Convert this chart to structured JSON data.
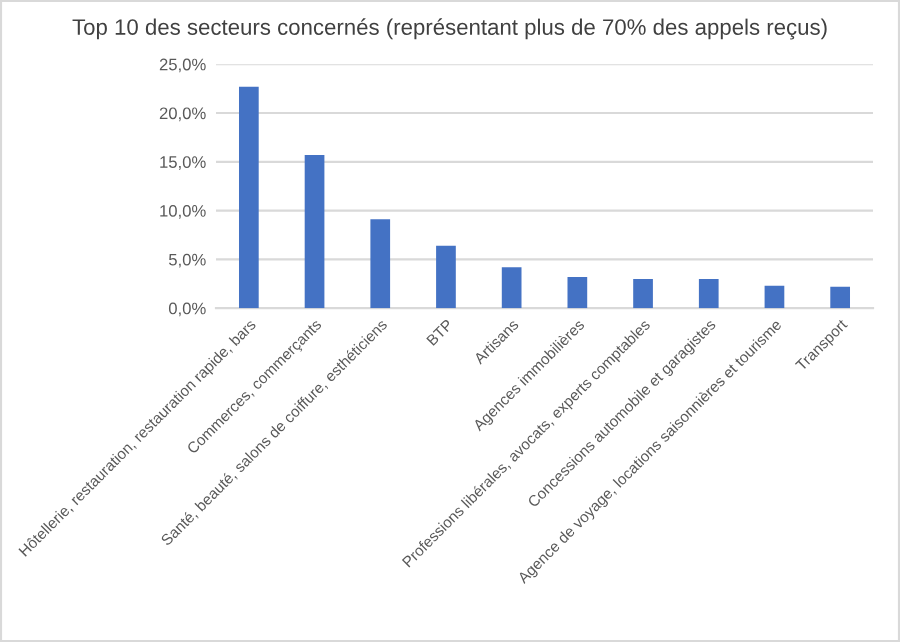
{
  "chart_data": {
    "type": "bar",
    "title": "Top 10 des secteurs concernés (représentant plus de 70% des appels reçus)",
    "categories": [
      "Hôtellerie, restauration, restauration rapide, bars",
      "Commerces, commerçants",
      "Santé, beauté, salons de coiffure, esthéticiens",
      "BTP",
      "Artisans",
      "Agences immobilières",
      "Professions libérales, avocats, experts comptables",
      "Concessions automobile et garagistes",
      "Agence de voyage, locations saisonnières et tourisme",
      "Transport"
    ],
    "values": [
      22.7,
      15.7,
      9.1,
      6.4,
      4.2,
      3.2,
      3.0,
      3.0,
      2.3,
      2.2
    ],
    "color": "#4472c4",
    "ylim": [
      0,
      25
    ],
    "yticks": [
      {
        "value": 0,
        "label": "0,0%"
      },
      {
        "value": 5,
        "label": "5,0%"
      },
      {
        "value": 10,
        "label": "10,0%"
      },
      {
        "value": 15,
        "label": "15,0%"
      },
      {
        "value": 20,
        "label": "20,0%"
      },
      {
        "value": 25,
        "label": "25,0%"
      }
    ],
    "grid": "y"
  }
}
